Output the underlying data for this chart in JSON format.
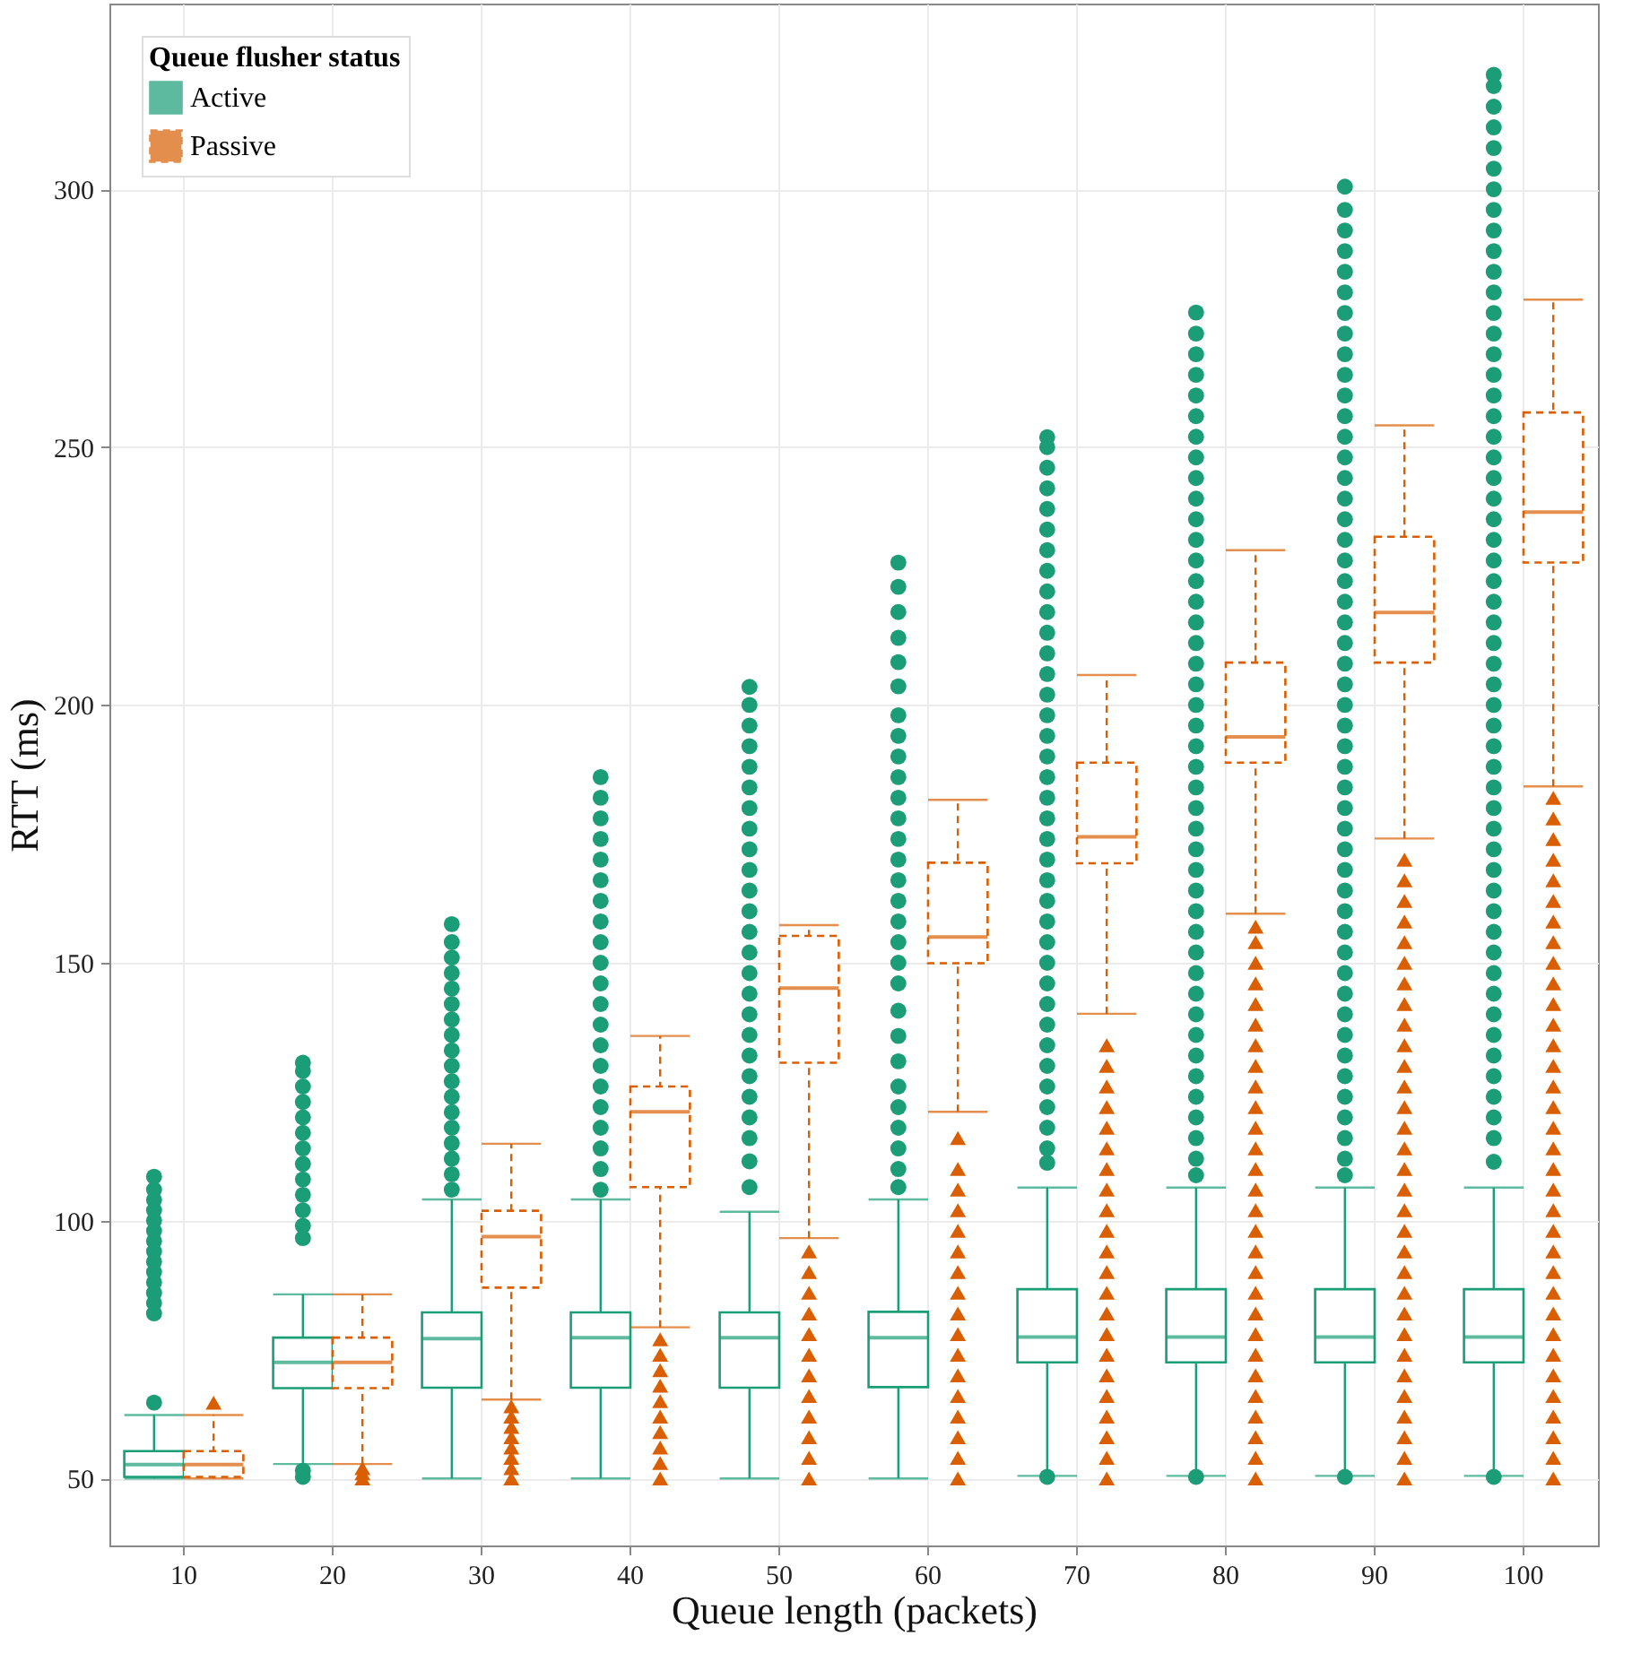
{
  "chart_data": {
    "type": "box",
    "xlabel": "Queue length (packets)",
    "ylabel": "RTT (ms)",
    "legend_title": "Queue flusher status",
    "legend": "top left",
    "grid": true,
    "categories": [
      "10",
      "20",
      "30",
      "40",
      "50",
      "60",
      "70",
      "80",
      "90",
      "100"
    ],
    "ylim": [
      37,
      336
    ],
    "yticks": [
      50,
      100,
      150,
      200,
      250,
      300
    ],
    "series": [
      {
        "name": "Active",
        "color": "#1b9e77",
        "line_style": "solid",
        "marker": "circle",
        "boxes": [
          {
            "low": 50,
            "q1": 50.3,
            "median": 52.7,
            "q3": 55.3,
            "high": 62.3,
            "outliers": [
              64.7,
              82,
              84,
              86,
              88,
              90,
              92,
              94,
              96,
              98,
              100,
              102,
              104,
              106,
              108.5
            ]
          },
          {
            "low": 52.8,
            "q1": 67.5,
            "median": 72.5,
            "q3": 77.3,
            "high": 85.7,
            "outliers": [
              50.3,
              51.5,
              96.6,
              99,
              102,
              105,
              108,
              111,
              114,
              117,
              120,
              123,
              126,
              129,
              130.6
            ]
          },
          {
            "low": 50,
            "q1": 67.6,
            "median": 77.1,
            "q3": 82.2,
            "high": 104.1,
            "outliers": [
              106,
              109,
              112,
              115,
              118,
              121,
              124,
              127,
              130,
              133,
              136,
              139,
              142,
              145,
              148,
              151,
              154,
              157.5
            ]
          },
          {
            "low": 50,
            "q1": 67.6,
            "median": 77.3,
            "q3": 82.2,
            "high": 104.1,
            "outliers": [
              106,
              110,
              114,
              118,
              122,
              126,
              130,
              134,
              138,
              142,
              146,
              150,
              154,
              158,
              162,
              166,
              170,
              174,
              178,
              182,
              186
            ]
          },
          {
            "low": 50,
            "q1": 67.6,
            "median": 77.3,
            "q3": 82.2,
            "high": 101.7,
            "outliers": [
              106.5,
              111.5,
              116,
              120,
              124,
              128,
              132,
              136,
              140,
              144,
              148,
              152,
              156,
              160,
              164,
              168,
              172,
              176,
              180,
              184,
              188,
              192,
              196,
              200,
              203.5
            ]
          },
          {
            "low": 50,
            "q1": 67.7,
            "median": 77.3,
            "q3": 82.3,
            "high": 104.1,
            "outliers": [
              106.5,
              110,
              114,
              118,
              122,
              126,
              130.9,
              135.8,
              140.7,
              146,
              150,
              154,
              158,
              162,
              166,
              170,
              174,
              178,
              182,
              186,
              190,
              194,
              198,
              203.6,
              208.3,
              213,
              218,
              222.9,
              227.6
            ]
          },
          {
            "low": 50.5,
            "q1": 72.5,
            "median": 77.4,
            "q3": 86.7,
            "high": 106.4,
            "outliers": [
              50.3,
              111.2,
              114,
              118,
              122,
              126,
              130,
              134,
              138,
              142,
              146,
              150,
              154,
              158,
              162,
              166,
              170,
              174,
              178,
              182,
              186,
              190,
              194,
              198,
              202,
              206,
              210,
              214,
              218,
              222,
              226,
              230,
              234,
              238,
              242,
              246,
              250,
              251.9
            ]
          },
          {
            "low": 50.5,
            "q1": 72.5,
            "median": 77.4,
            "q3": 86.7,
            "high": 106.4,
            "outliers": [
              50.3,
              108.8,
              112,
              116,
              120,
              124,
              128,
              132,
              136,
              140,
              144,
              148,
              152,
              156,
              160,
              164,
              168,
              172,
              176,
              180,
              184,
              188,
              192,
              196,
              200,
              204,
              208,
              212,
              216,
              220,
              224,
              228,
              232,
              236,
              240,
              244,
              248,
              252,
              256,
              260,
              264,
              268,
              272,
              276.1
            ]
          },
          {
            "low": 50.5,
            "q1": 72.5,
            "median": 77.4,
            "q3": 86.7,
            "high": 106.4,
            "outliers": [
              50.3,
              108.8,
              112,
              116,
              120,
              124,
              128,
              132,
              136,
              140,
              144,
              148,
              152,
              156,
              160,
              164,
              168,
              172,
              176,
              180,
              184,
              188,
              192,
              196,
              200,
              204,
              208,
              212,
              216,
              220,
              224,
              228,
              232,
              236,
              240,
              244,
              248,
              252,
              256,
              260,
              264,
              268,
              272,
              276,
              280,
              284,
              288,
              292,
              296,
              300.5
            ]
          },
          {
            "low": 50.5,
            "q1": 72.5,
            "median": 77.4,
            "q3": 86.7,
            "high": 106.4,
            "outliers": [
              50.3,
              111.4,
              116,
              120,
              124,
              128,
              132,
              136,
              140,
              144,
              148,
              152,
              156,
              160,
              164,
              168,
              172,
              176,
              180,
              184,
              188,
              192,
              196,
              200,
              204,
              208,
              212,
              216,
              220,
              224,
              228,
              232,
              236,
              240,
              244,
              248,
              252,
              256,
              260,
              264,
              268,
              272,
              276,
              280,
              284,
              288,
              292,
              296,
              300,
              304,
              308,
              312,
              316,
              320,
              322.2
            ]
          }
        ]
      },
      {
        "name": "Passive",
        "color": "#d95f02",
        "line_style": "dashed",
        "marker": "triangle",
        "boxes": [
          {
            "low": 50,
            "q1": 50.3,
            "median": 52.7,
            "q3": 55.3,
            "high": 62.3,
            "outliers": [
              64.7
            ]
          },
          {
            "low": 52.8,
            "q1": 67.5,
            "median": 72.5,
            "q3": 77.3,
            "high": 85.7,
            "outliers": [
              50,
              51,
              52
            ]
          },
          {
            "low": 65.3,
            "q1": 87,
            "median": 96.9,
            "q3": 101.9,
            "high": 114.9,
            "outliers": [
              50,
              52,
              54,
              56,
              58,
              60,
              62,
              64
            ]
          },
          {
            "low": 79.3,
            "q1": 106.5,
            "median": 121.1,
            "q3": 126,
            "high": 135.8,
            "outliers": [
              50,
              53,
              56,
              59,
              62,
              65,
              68,
              71,
              74,
              77
            ]
          },
          {
            "low": 96.6,
            "q1": 130.6,
            "median": 145.1,
            "q3": 155.2,
            "high": 157.3,
            "outliers": [
              50,
              54,
              58,
              62,
              66,
              70,
              74,
              78,
              82,
              86,
              90,
              94
            ]
          },
          {
            "low": 121.1,
            "q1": 149.9,
            "median": 155,
            "q3": 169.4,
            "high": 181.6,
            "outliers": [
              50,
              54,
              58,
              62,
              66,
              70,
              74,
              78,
              82,
              86,
              90,
              94,
              98,
              102,
              106,
              110,
              116
            ]
          },
          {
            "low": 140.1,
            "q1": 169.3,
            "median": 174.4,
            "q3": 188.8,
            "high": 205.8,
            "outliers": [
              50,
              54,
              58,
              62,
              66,
              70,
              74,
              78,
              82,
              86,
              90,
              94,
              98,
              102,
              106,
              110,
              114,
              118,
              122,
              126,
              130,
              134
            ]
          },
          {
            "low": 159.5,
            "q1": 188.8,
            "median": 193.8,
            "q3": 208.2,
            "high": 230,
            "outliers": [
              50,
              54,
              58,
              62,
              66,
              70,
              74,
              78,
              82,
              86,
              90,
              94,
              98,
              102,
              106,
              110,
              114,
              118,
              122,
              126,
              130,
              134,
              138,
              142,
              146,
              150,
              154,
              157
            ]
          },
          {
            "low": 174.1,
            "q1": 208.2,
            "median": 217.9,
            "q3": 232.6,
            "high": 254.2,
            "outliers": [
              50,
              54,
              58,
              62,
              66,
              70,
              74,
              78,
              82,
              86,
              90,
              94,
              98,
              102,
              106,
              110,
              114,
              118,
              122,
              126,
              130,
              134,
              138,
              142,
              146,
              150,
              154,
              158,
              162,
              166,
              170
            ]
          },
          {
            "low": 184.2,
            "q1": 227.6,
            "median": 237.4,
            "q3": 256.7,
            "high": 278.6,
            "outliers": [
              50,
              54,
              58,
              62,
              66,
              70,
              74,
              78,
              82,
              86,
              90,
              94,
              98,
              102,
              106,
              110,
              114,
              118,
              122,
              126,
              130,
              134,
              138,
              142,
              146,
              150,
              154,
              158,
              162,
              166,
              170,
              174,
              178,
              182
            ]
          }
        ]
      }
    ]
  }
}
